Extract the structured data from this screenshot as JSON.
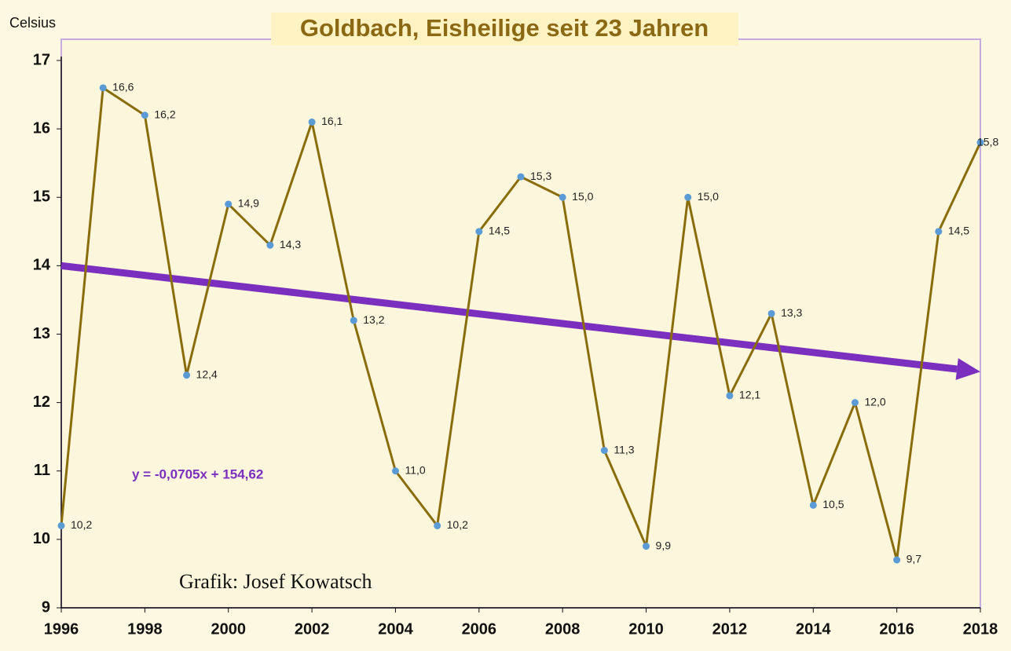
{
  "chart_data": {
    "type": "line",
    "title": "Goldbach, Eisheilige seit 23 Jahren",
    "y_label": "Celsius",
    "annotations": [
      "Grafik: Josef Kowatsch"
    ],
    "x": [
      1996,
      1997,
      1998,
      1999,
      2000,
      2001,
      2002,
      2003,
      2004,
      2005,
      2006,
      2007,
      2008,
      2009,
      2010,
      2011,
      2012,
      2013,
      2014,
      2015,
      2016,
      2017,
      2018
    ],
    "series": [
      {
        "color": "#8a6d0b",
        "marker_color": "#5b9bd5",
        "values": [
          10.2,
          16.6,
          16.2,
          12.4,
          14.9,
          14.3,
          16.1,
          13.2,
          11.0,
          10.2,
          14.5,
          15.3,
          15.0,
          11.3,
          9.9,
          15.0,
          12.1,
          13.3,
          10.5,
          12.0,
          9.7,
          14.5,
          15.8
        ],
        "value_labels": [
          "10,2",
          "16,6",
          "16,2",
          "12,4",
          "14,9",
          "14,3",
          "16,1",
          "13,2",
          "11,0",
          "10,2",
          "14,5",
          "15,3",
          "15,0",
          "11,3",
          "9,9",
          "15,0",
          "12,1",
          "13,3",
          "10,5",
          "12,0",
          "9,7",
          "14,5",
          "15,8"
        ]
      }
    ],
    "trendline": {
      "equation": "y = -0,0705x + 154,62",
      "color": "#7b2fbe",
      "x": [
        1996,
        2018
      ],
      "values": [
        14.0,
        12.45
      ]
    },
    "xlim": [
      1996,
      2018
    ],
    "xticks": [
      1996,
      1998,
      2000,
      2002,
      2004,
      2006,
      2008,
      2010,
      2012,
      2014,
      2016,
      2018
    ],
    "ylim": [
      9,
      17
    ],
    "yticks": [
      9,
      10,
      11,
      12,
      13,
      14,
      15,
      16,
      17
    ],
    "grid": false
  }
}
